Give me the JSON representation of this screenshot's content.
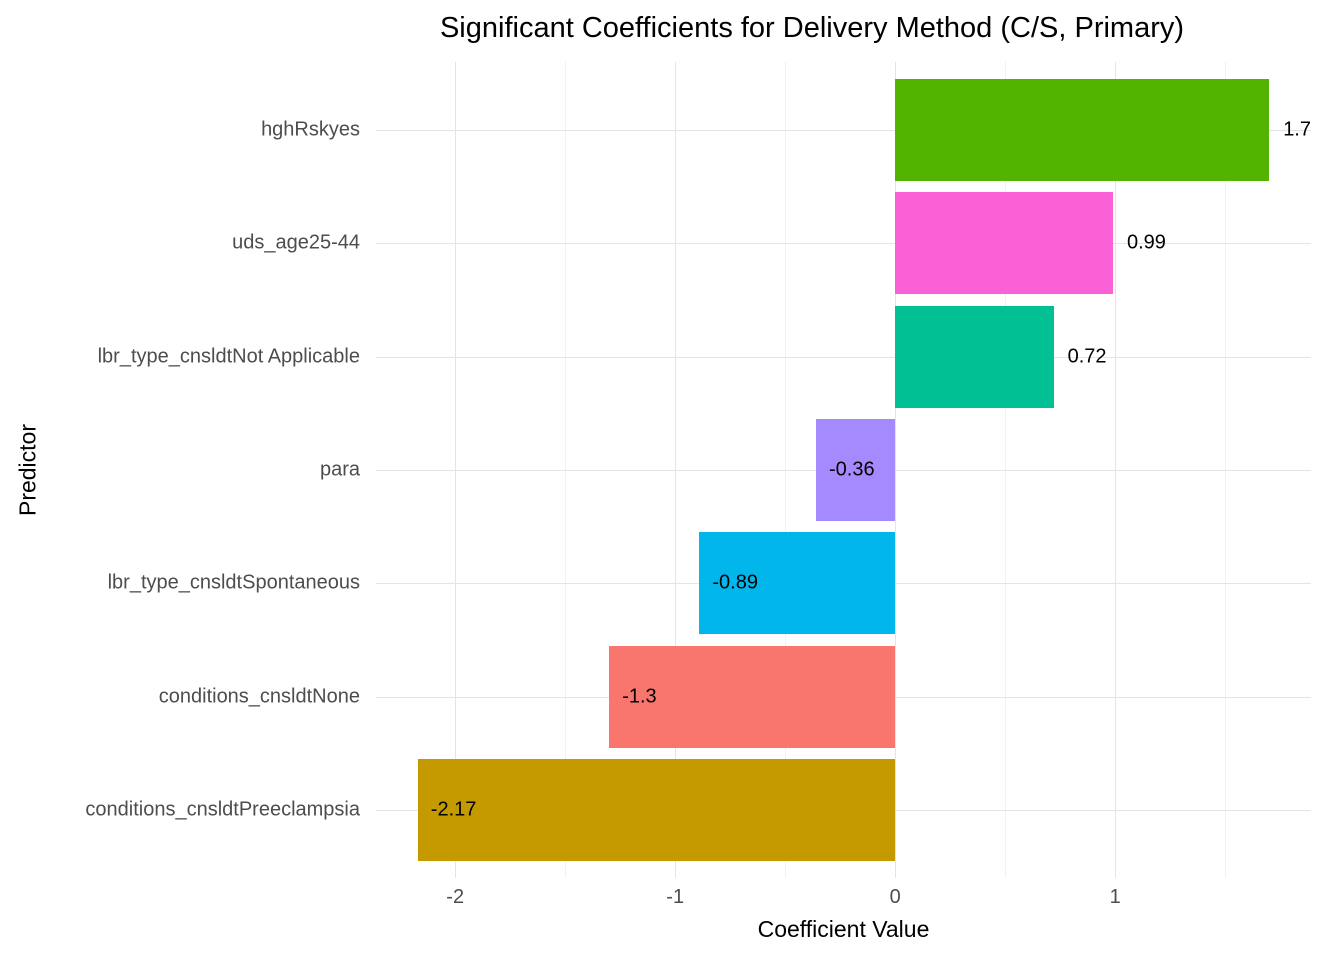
{
  "chart_data": {
    "type": "bar",
    "orientation": "horizontal",
    "title": "Significant Coefficients for Delivery Method (C/S, Primary)",
    "xlabel": "Coefficient Value",
    "ylabel": "Predictor",
    "categories": [
      "hghRskyes",
      "uds_age25-44",
      "lbr_type_cnsldtNot Applicable",
      "para",
      "lbr_type_cnsldtSpontaneous",
      "conditions_cnsldtNone",
      "conditions_cnsldtPreeclampsia"
    ],
    "values": [
      1.7,
      0.99,
      0.72,
      -0.36,
      -0.89,
      -1.3,
      -2.17
    ],
    "value_labels": [
      "1.7",
      "0.99",
      "0.72",
      "-0.36",
      "-0.89",
      "-1.3",
      "-2.17"
    ],
    "colors": [
      "#53B400",
      "#FB61D7",
      "#00C094",
      "#A58AFF",
      "#00B6EB",
      "#F8766D",
      "#C49A00"
    ],
    "x_ticks": [
      -2,
      -1,
      0,
      1
    ],
    "x_tick_labels": [
      "-2",
      "-1",
      "0",
      "1"
    ],
    "x_minor_ticks": [
      -1.5,
      -0.5,
      0.5,
      1.5
    ],
    "xlim": [
      -2.36,
      1.89
    ],
    "bar_width_fraction": 0.9,
    "grid": true,
    "legend": "none",
    "background_color": "#FFFFFF",
    "major_grid_color": "#E4E4E4",
    "minor_grid_color": "#F1F1F1",
    "axis_text_color": "#4D4D4D",
    "label_color": "#000000"
  }
}
